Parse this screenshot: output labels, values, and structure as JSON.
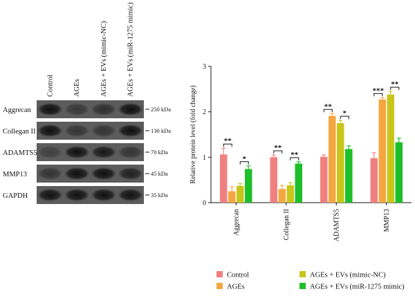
{
  "blot": {
    "lanes": [
      "Control",
      "AGEs",
      "AGEs + EVs (mimic-NC)",
      "AGEs + EVs (miR-1275 mimic)"
    ],
    "proteins": [
      "Aggrecan",
      "Collegan II",
      "ADAMTS5",
      "MMP13",
      "GAPDH"
    ],
    "weights": [
      "250 kDa",
      "130 kDa",
      "70 kDa",
      "45 kDa",
      "35 kDa"
    ],
    "intensity": [
      [
        0.95,
        0.45,
        0.55,
        0.95
      ],
      [
        0.95,
        0.5,
        0.5,
        0.95
      ],
      [
        0.35,
        0.95,
        0.85,
        0.5
      ],
      [
        0.5,
        0.95,
        0.95,
        0.75
      ],
      [
        0.92,
        0.92,
        0.92,
        0.92
      ]
    ]
  },
  "chart_data": {
    "type": "bar",
    "ylabel": "Relative protein level (fold change)",
    "ylim": [
      0,
      3
    ],
    "yticks": [
      "0",
      "1",
      "2",
      "3"
    ],
    "categories": [
      "Aggrecan",
      "Collegan II",
      "ADAMTS5",
      "MMP13"
    ],
    "series": [
      {
        "name": "Control",
        "color": "#f08080",
        "values": [
          1.06,
          1.0,
          1.01,
          0.98
        ],
        "errors": [
          0.14,
          0.05,
          0.04,
          0.12
        ]
      },
      {
        "name": "AGEs",
        "color": "#f5a640",
        "values": [
          0.25,
          0.3,
          1.91,
          2.27
        ],
        "errors": [
          0.1,
          0.08,
          0.05,
          0.04
        ]
      },
      {
        "name": "AGEs + EVs (mimic-NC)",
        "color": "#c8c61a",
        "values": [
          0.37,
          0.38,
          1.75,
          2.38
        ],
        "errors": [
          0.05,
          0.06,
          0.06,
          0.07
        ]
      },
      {
        "name": "AGEs + EVs (miR-1275 mimic)",
        "color": "#1dbf2a",
        "values": [
          0.74,
          0.86,
          1.18,
          1.33
        ],
        "errors": [
          0.07,
          0.04,
          0.07,
          0.09
        ]
      }
    ],
    "significance": [
      {
        "category": 0,
        "from": 0,
        "to": 1,
        "label": "**"
      },
      {
        "category": 0,
        "from": 2,
        "to": 3,
        "label": "*"
      },
      {
        "category": 1,
        "from": 0,
        "to": 1,
        "label": "**"
      },
      {
        "category": 1,
        "from": 2,
        "to": 3,
        "label": "**"
      },
      {
        "category": 2,
        "from": 0,
        "to": 1,
        "label": "**"
      },
      {
        "category": 2,
        "from": 2,
        "to": 3,
        "label": "*"
      },
      {
        "category": 3,
        "from": 0,
        "to": 1,
        "label": "***"
      },
      {
        "category": 3,
        "from": 2,
        "to": 3,
        "label": "**"
      }
    ],
    "legend_position": "bottom"
  }
}
